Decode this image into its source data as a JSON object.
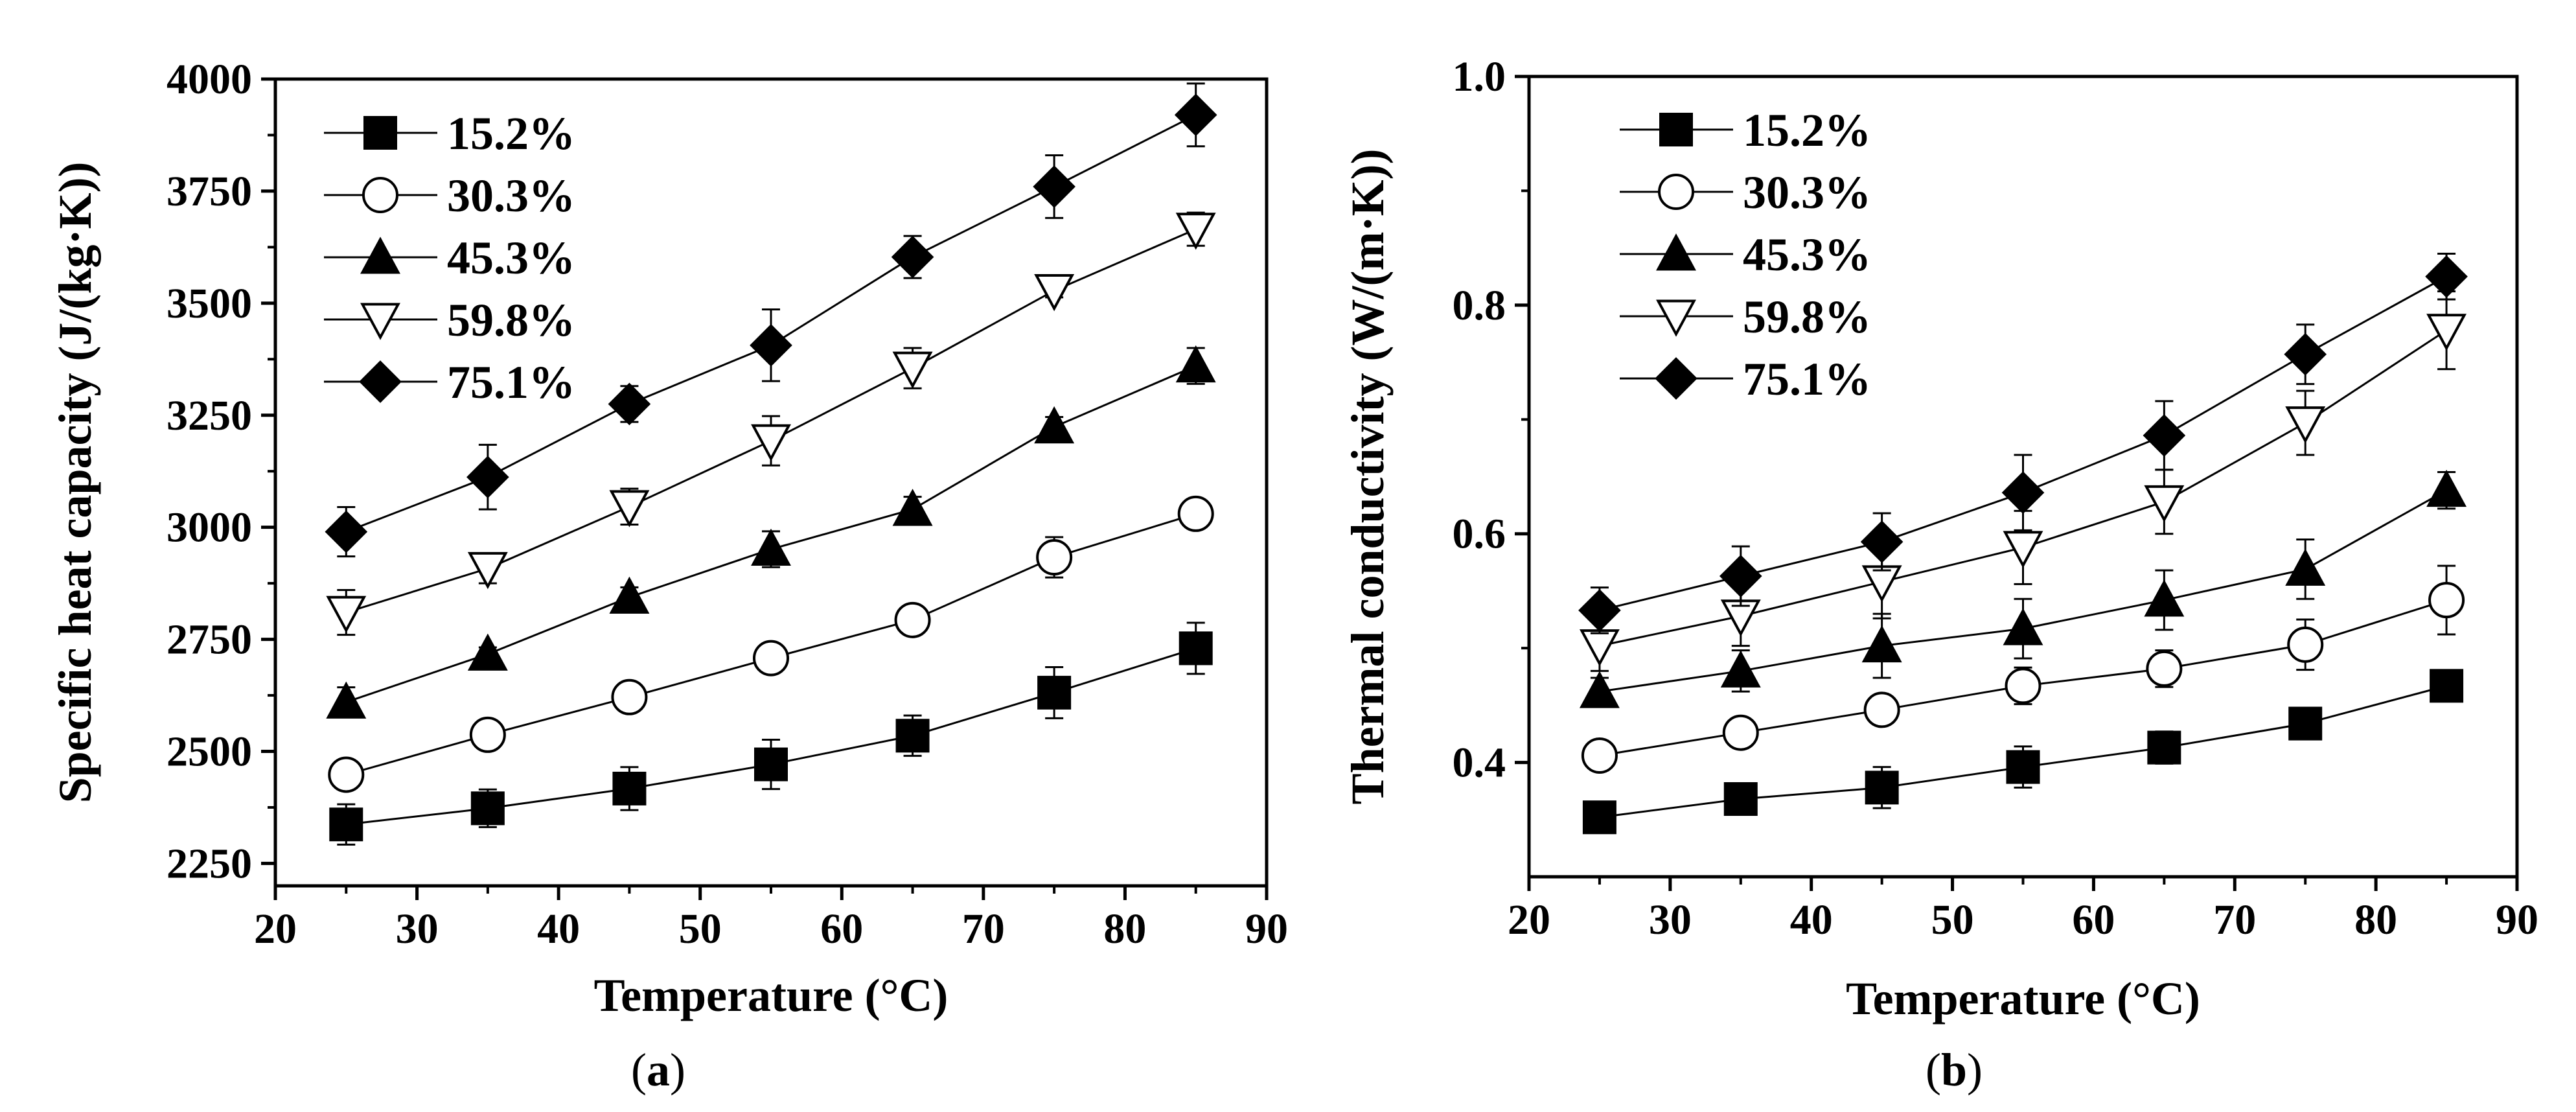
{
  "chart_data": [
    {
      "type": "line",
      "panel_label": "a",
      "title": "",
      "xlabel": "Temperature (°C)",
      "ylabel": "Specific heat capacity (J/(kg·K))",
      "xlim": [
        20,
        90
      ],
      "ylim": [
        2200,
        4000
      ],
      "xticks": [
        20,
        30,
        40,
        50,
        60,
        70,
        80,
        90
      ],
      "yticks": [
        2250,
        2500,
        2750,
        3000,
        3250,
        3500,
        3750,
        4000
      ],
      "x": [
        25,
        35,
        45,
        55,
        65,
        75,
        85
      ],
      "grid": false,
      "legend_position": "top-left",
      "series": [
        {
          "name": "15.2%",
          "marker": "square",
          "values": [
            2337,
            2373,
            2417,
            2471,
            2535,
            2631,
            2730
          ],
          "errors": [
            45,
            42,
            48,
            55,
            45,
            57,
            57
          ]
        },
        {
          "name": "30.3%",
          "marker": "open-circle",
          "values": [
            2448,
            2537,
            2621,
            2708,
            2793,
            2933,
            3030
          ],
          "errors": [
            22,
            18,
            18,
            15,
            15,
            45,
            30
          ]
        },
        {
          "name": "45.3%",
          "marker": "triangle-up",
          "values": [
            2610,
            2717,
            2844,
            2951,
            3040,
            3224,
            3360
          ],
          "errors": [
            33,
            15,
            22,
            40,
            28,
            22,
            40
          ]
        },
        {
          "name": "59.8%",
          "marker": "open-triangle-down",
          "values": [
            2810,
            2908,
            3046,
            3193,
            3355,
            3528,
            3665
          ],
          "errors": [
            50,
            33,
            40,
            55,
            45,
            15,
            37
          ]
        },
        {
          "name": "75.1%",
          "marker": "diamond",
          "values": [
            2990,
            3112,
            3275,
            3406,
            3603,
            3760,
            3920
          ],
          "errors": [
            55,
            72,
            40,
            80,
            47,
            70,
            70
          ]
        }
      ]
    },
    {
      "type": "line",
      "panel_label": "b",
      "title": "",
      "xlabel": "Temperature (°C)",
      "ylabel": "Thermal conductivity (W/(m·K))",
      "xlim": [
        20,
        90
      ],
      "ylim": [
        0.3,
        1.0
      ],
      "xticks": [
        20,
        30,
        40,
        50,
        60,
        70,
        80,
        90
      ],
      "yticks": [
        0.4,
        0.6,
        0.8,
        1.0
      ],
      "xtick_labels": [
        "20",
        "30",
        "40",
        "50",
        "60",
        "70",
        "80",
        "90"
      ],
      "ytick_labels": [
        "0.4",
        "0.6",
        "0.8",
        "1.0"
      ],
      "x": [
        25,
        35,
        45,
        55,
        65,
        75,
        85
      ],
      "grid": false,
      "legend_position": "top-left",
      "series": [
        {
          "name": "15.2%",
          "marker": "square",
          "values": [
            0.352,
            0.368,
            0.378,
            0.396,
            0.413,
            0.434,
            0.467
          ],
          "errors": [
            0.006,
            0.012,
            0.018,
            0.018,
            0.014,
            0.006,
            0.008
          ]
        },
        {
          "name": "30.3%",
          "marker": "open-circle",
          "values": [
            0.406,
            0.426,
            0.446,
            0.467,
            0.482,
            0.503,
            0.542
          ],
          "errors": [
            0.008,
            0.012,
            0.01,
            0.016,
            0.016,
            0.022,
            0.03
          ]
        },
        {
          "name": "45.3%",
          "marker": "triangle-up",
          "values": [
            0.462,
            0.48,
            0.502,
            0.517,
            0.542,
            0.569,
            0.638
          ],
          "errors": [
            0.012,
            0.018,
            0.028,
            0.026,
            0.026,
            0.026,
            0.016
          ]
        },
        {
          "name": "59.8%",
          "marker": "open-triangle-down",
          "values": [
            0.502,
            0.528,
            0.558,
            0.588,
            0.628,
            0.697,
            0.778
          ],
          "errors": [
            0.022,
            0.026,
            0.032,
            0.032,
            0.028,
            0.028,
            0.034
          ]
        },
        {
          "name": "75.1%",
          "marker": "diamond",
          "values": [
            0.533,
            0.563,
            0.593,
            0.636,
            0.686,
            0.757,
            0.825
          ],
          "errors": [
            0.02,
            0.026,
            0.025,
            0.033,
            0.03,
            0.026,
            0.02
          ]
        }
      ]
    }
  ]
}
